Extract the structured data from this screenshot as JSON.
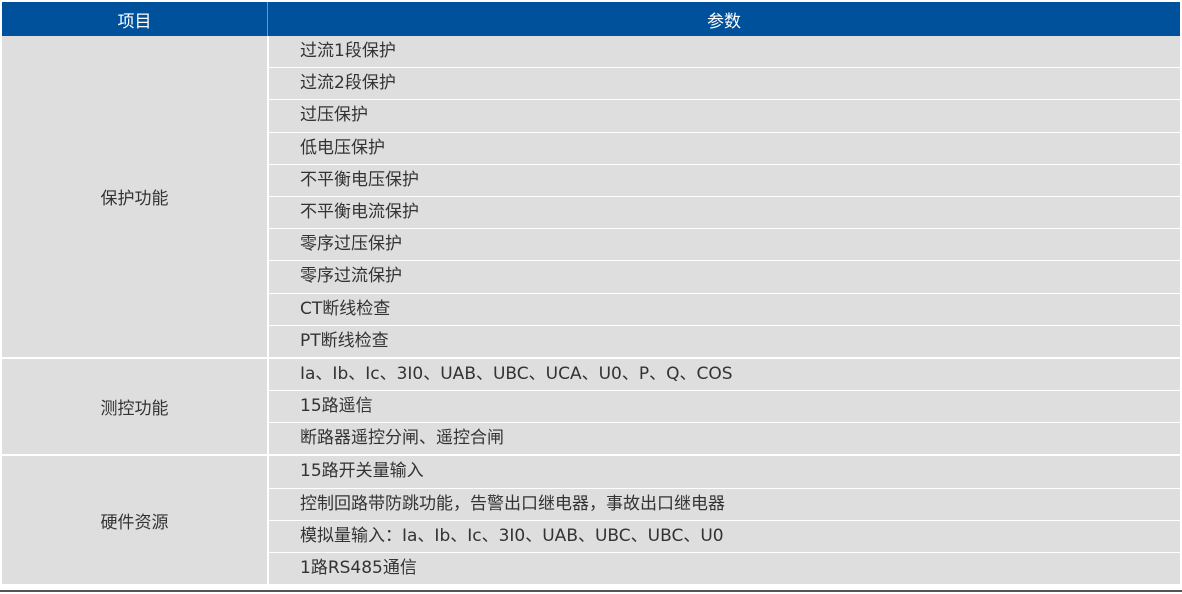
{
  "header": {
    "col1": "项目",
    "col2": "参数"
  },
  "colors": {
    "header_bg": "#00519c",
    "row_bg": "#dedede"
  },
  "groups": [
    {
      "label": "保护功能",
      "items": [
        "过流1段保护",
        "过流2段保护",
        "过压保护",
        "低电压保护",
        "不平衡电压保护",
        "不平衡电流保护",
        "零序过压保护",
        "零序过流保护",
        "CT断线检查",
        "PT断线检查"
      ]
    },
    {
      "label": "测控功能",
      "items": [
        "Ia、Ib、Ic、3I0、UAB、UBC、UCA、U0、P、Q、COS",
        "15路遥信",
        "断路器遥控分闸、遥控合闸"
      ]
    },
    {
      "label": "硬件资源",
      "items": [
        "15路开关量输入",
        "控制回路带防跳功能，告警出口继电器，事故出口继电器",
        "模拟量输入：Ia、Ib、Ic、3I0、UAB、UBC、UBC、U0",
        "1路RS485通信"
      ]
    }
  ]
}
